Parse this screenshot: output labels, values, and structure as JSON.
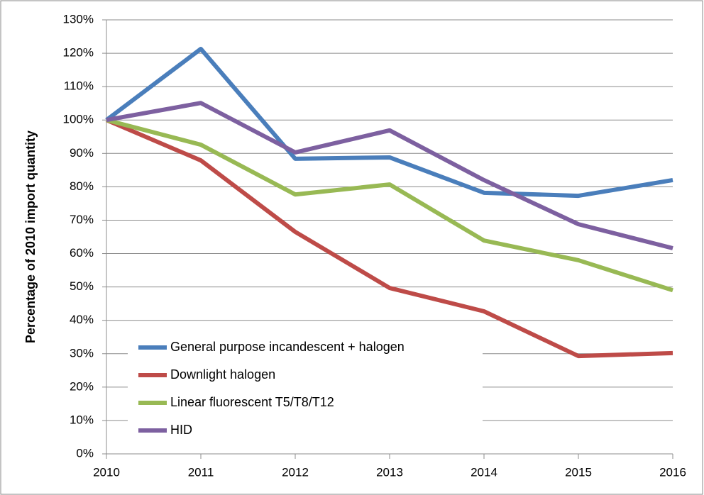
{
  "chart_data": {
    "type": "line",
    "y_label": "Percentage of 2010 import quantity",
    "x": [
      2010,
      2011,
      2012,
      2013,
      2014,
      2015,
      2016
    ],
    "series": [
      {
        "name": "General purpose incandescent + halogen",
        "color": "#4a7ebb",
        "values": [
          100,
          121.3,
          88.4,
          88.8,
          78.2,
          77.3,
          82
        ]
      },
      {
        "name": "Downlight halogen",
        "color": "#be4b48",
        "values": [
          100,
          87.9,
          66.5,
          49.7,
          42.7,
          29.3,
          30.2
        ]
      },
      {
        "name": "Linear fluorescent T5/T8/T12",
        "color": "#98b954",
        "values": [
          100,
          92.6,
          77.7,
          80.7,
          63.9,
          58,
          49
        ]
      },
      {
        "name": "HID",
        "color": "#7d60a0",
        "values": [
          100,
          105.1,
          90.3,
          96.9,
          82,
          68.8,
          61.6
        ]
      }
    ],
    "xlim": [
      2010,
      2016
    ],
    "xticks": [
      2010,
      2011,
      2012,
      2013,
      2014,
      2015,
      2016
    ],
    "ylim": [
      0,
      130
    ],
    "yticks": [
      {
        "value": 0,
        "label": "0%"
      },
      {
        "value": 10,
        "label": "10%"
      },
      {
        "value": 20,
        "label": "20%"
      },
      {
        "value": 30,
        "label": "30%"
      },
      {
        "value": 40,
        "label": "40%"
      },
      {
        "value": 50,
        "label": "50%"
      },
      {
        "value": 60,
        "label": "60%"
      },
      {
        "value": 70,
        "label": "70%"
      },
      {
        "value": 80,
        "label": "80%"
      },
      {
        "value": 90,
        "label": "90%"
      },
      {
        "value": 100,
        "label": "100%"
      },
      {
        "value": 110,
        "label": "110%"
      },
      {
        "value": 120,
        "label": "120%"
      },
      {
        "value": 130,
        "label": "130%"
      }
    ],
    "grid": true,
    "legend": "lower left"
  }
}
